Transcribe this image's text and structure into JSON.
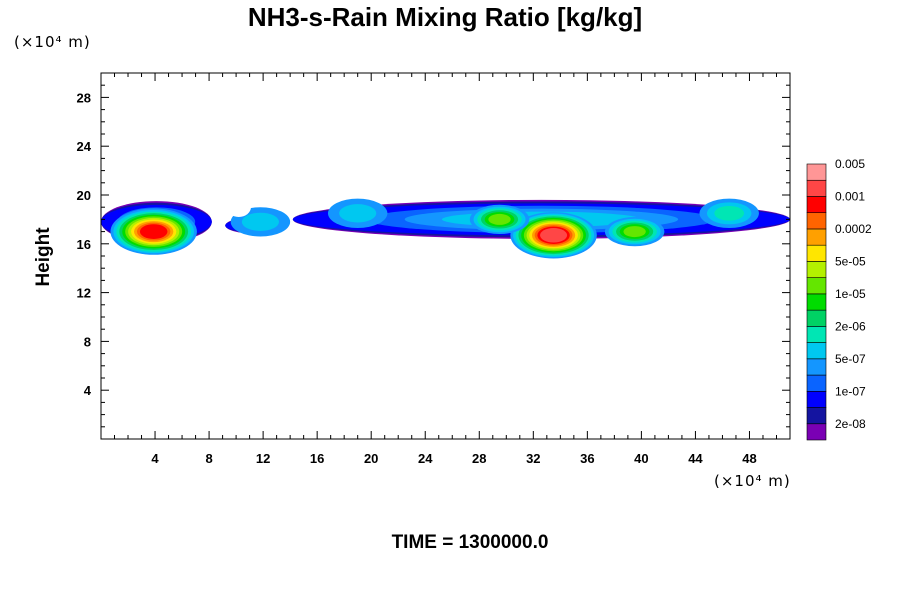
{
  "chart_data": {
    "type": "heatmap",
    "title": "NH3-s-Rain Mixing Ratio [kg/kg]",
    "ylabel": "Height",
    "xlabel": "",
    "x_unit": "(×10⁴ m)",
    "y_unit": "(×10⁴ m)",
    "time_label": "TIME = 1300000.0",
    "xlim": [
      0,
      51
    ],
    "ylim": [
      0,
      30
    ],
    "x_ticks": [
      4,
      8,
      12,
      16,
      20,
      24,
      28,
      32,
      36,
      40,
      44,
      48
    ],
    "y_ticks": [
      4,
      8,
      12,
      16,
      20,
      24,
      28
    ],
    "colorbar": {
      "levels": [
        "2e-08",
        "1e-07",
        "5e-07",
        "2e-06",
        "1e-05",
        "5e-05",
        "0.0002",
        "0.001",
        "0.005"
      ],
      "colors": [
        "#7a00b4",
        "#1414a0",
        "#0000ff",
        "#0a64ff",
        "#1496ff",
        "#00c8f0",
        "#00e6b4",
        "#00d264",
        "#00dc00",
        "#64e600",
        "#b4f000",
        "#ffe600",
        "#ffa000",
        "#ff6400",
        "#ff0000",
        "#ff4646",
        "#ff9696"
      ]
    },
    "regions": [
      {
        "x": 3.9,
        "y": 17.0,
        "level": 14
      },
      {
        "x": 33.5,
        "y": 16.7,
        "level": 15
      },
      {
        "x": 29.5,
        "y": 18.0,
        "level": 9
      },
      {
        "x": 39.5,
        "y": 17.0,
        "level": 9
      },
      {
        "x": 46.5,
        "y": 18.5,
        "level": 6
      },
      {
        "x": 11.8,
        "y": 17.8,
        "level": 5
      },
      {
        "x": 19.0,
        "y": 18.5,
        "level": 5
      }
    ]
  }
}
